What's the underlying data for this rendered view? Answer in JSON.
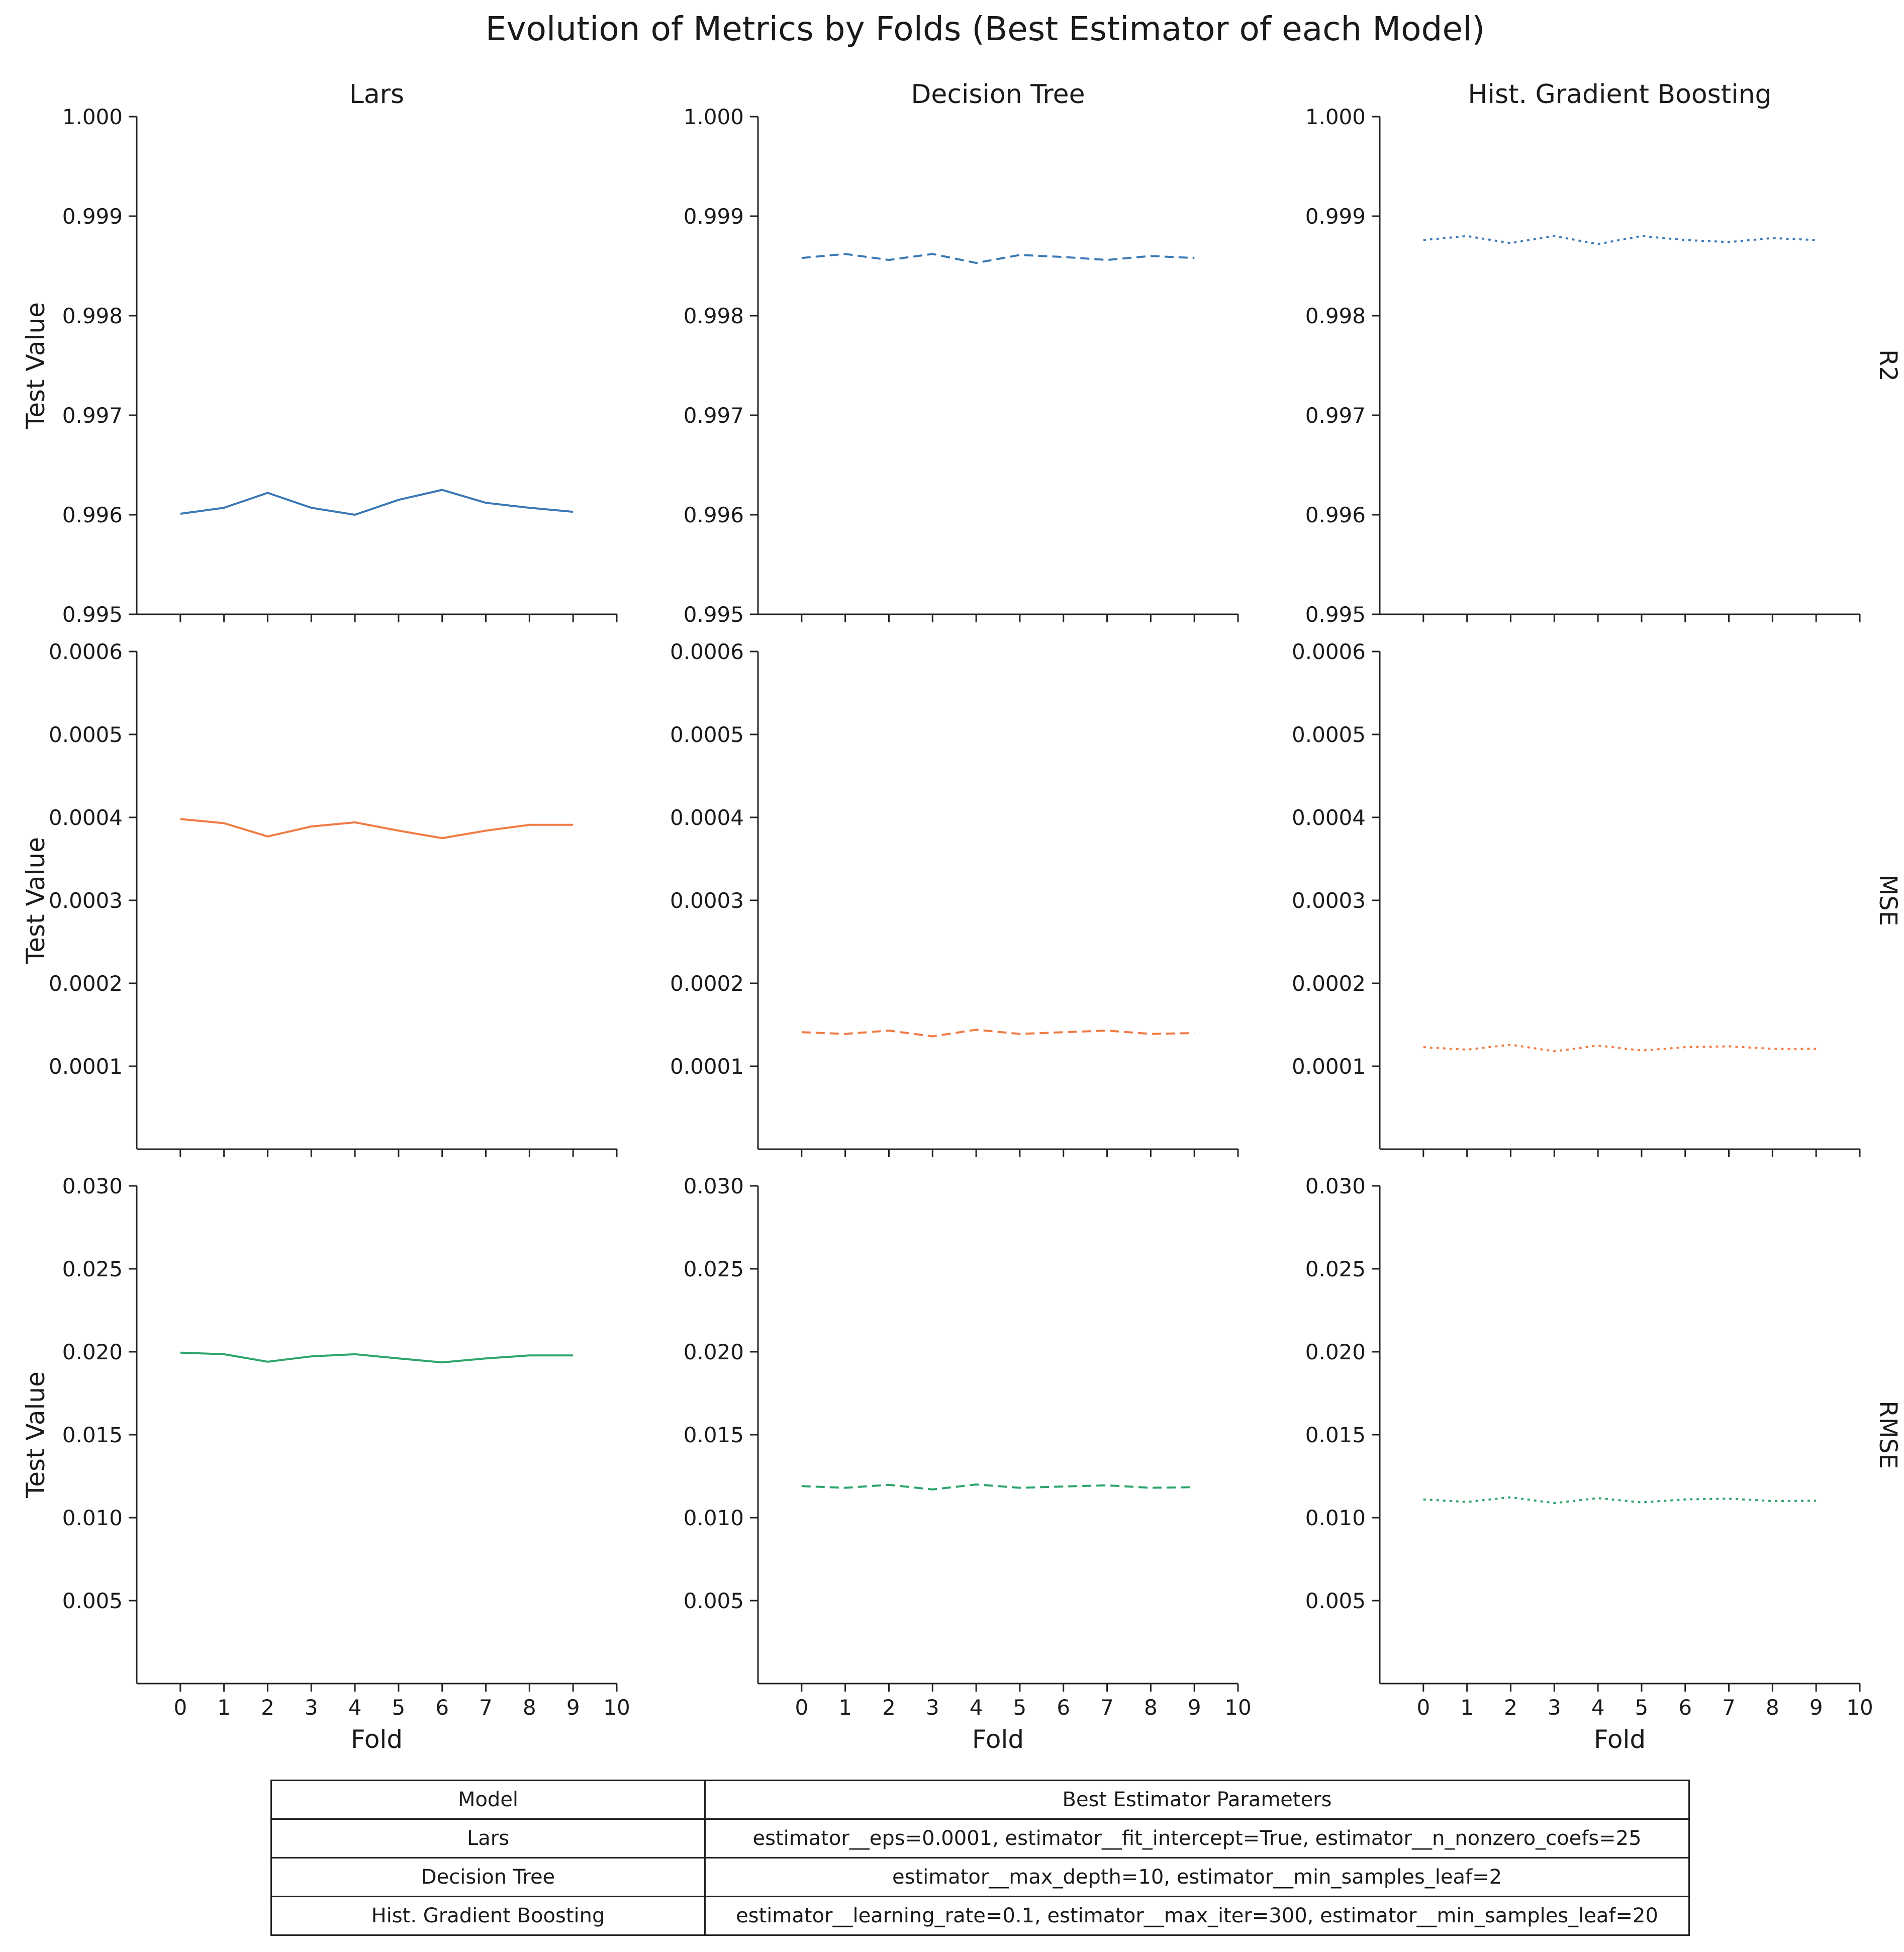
{
  "title": "Evolution of Metrics by Folds (Best Estimator of each Model)",
  "chart_data": {
    "type": "line",
    "columns": [
      "Lars",
      "Decision Tree",
      "Hist. Gradient Boosting"
    ],
    "rows": [
      {
        "name": "R2",
        "color": "#3a78b5",
        "ylim": [
          0.995,
          1.0
        ],
        "ytick_labels": [
          "0.995",
          "0.996",
          "0.997",
          "0.998",
          "0.999",
          "1.000"
        ],
        "ytick_values": [
          0.995,
          0.996,
          0.997,
          0.998,
          0.999,
          1.0
        ]
      },
      {
        "name": "MSE",
        "color": "#f07b45",
        "ylim": [
          0.0,
          0.0006
        ],
        "ytick_labels": [
          "0.0001",
          "0.0002",
          "0.0003",
          "0.0004",
          "0.0005",
          "0.0006"
        ],
        "ytick_values": [
          0.0001,
          0.0002,
          0.0003,
          0.0004,
          0.0005,
          0.0006
        ]
      },
      {
        "name": "RMSE",
        "color": "#2ca56a",
        "ylim": [
          0.0,
          0.03
        ],
        "ytick_labels": [
          "0.005",
          "0.010",
          "0.015",
          "0.020",
          "0.025",
          "0.030"
        ],
        "ytick_values": [
          0.005,
          0.01,
          0.015,
          0.02,
          0.025,
          0.03
        ]
      }
    ],
    "x": [
      0,
      1,
      2,
      3,
      4,
      5,
      6,
      7,
      8,
      9
    ],
    "xlim": [
      -1,
      10
    ],
    "xtick_labels": [
      "0",
      "1",
      "2",
      "3",
      "4",
      "5",
      "6",
      "7",
      "8",
      "9",
      "10"
    ],
    "xlabel": "Fold",
    "ylabel": "Test Value",
    "line_styles": [
      "solid",
      "dashed",
      "dotted"
    ],
    "values": {
      "R2": [
        [
          0.99601,
          0.99607,
          0.99622,
          0.99607,
          0.996,
          0.99615,
          0.99625,
          0.99612,
          0.99607,
          0.99603
        ],
        [
          0.99858,
          0.99862,
          0.99856,
          0.99862,
          0.99853,
          0.99861,
          0.99859,
          0.99856,
          0.9986,
          0.99858
        ],
        [
          0.99876,
          0.9988,
          0.99873,
          0.9988,
          0.99872,
          0.9988,
          0.99876,
          0.99874,
          0.99878,
          0.99876
        ]
      ],
      "MSE": [
        [
          0.000398,
          0.000393,
          0.000377,
          0.000389,
          0.000394,
          0.000384,
          0.000375,
          0.000384,
          0.000391,
          0.000391
        ],
        [
          0.000141,
          0.000139,
          0.000143,
          0.000136,
          0.000144,
          0.000139,
          0.000141,
          0.000143,
          0.000139,
          0.00014
        ],
        [
          0.000123,
          0.00012,
          0.000126,
          0.000118,
          0.000125,
          0.000119,
          0.000123,
          0.000124,
          0.000121,
          0.000121
        ]
      ],
      "RMSE": [
        [
          0.01995,
          0.01985,
          0.0194,
          0.01972,
          0.01985,
          0.0196,
          0.01936,
          0.0196,
          0.01978,
          0.01978
        ],
        [
          0.0119,
          0.0118,
          0.01198,
          0.0117,
          0.012,
          0.0118,
          0.01188,
          0.01195,
          0.0118,
          0.01184
        ],
        [
          0.0111,
          0.01095,
          0.01123,
          0.01088,
          0.01118,
          0.01092,
          0.0111,
          0.01115,
          0.011,
          0.01102
        ]
      ]
    }
  },
  "table": {
    "headers": [
      "Model",
      "Best Estimator Parameters"
    ],
    "rows": [
      {
        "model": "Lars",
        "params": "estimator__eps=0.0001, estimator__fit_intercept=True, estimator__n_nonzero_coefs=25"
      },
      {
        "model": "Decision Tree",
        "params": "estimator__max_depth=10, estimator__min_samples_leaf=2"
      },
      {
        "model": "Hist. Gradient Boosting",
        "params": "estimator__learning_rate=0.1, estimator__max_iter=300, estimator__min_samples_leaf=20"
      }
    ]
  }
}
